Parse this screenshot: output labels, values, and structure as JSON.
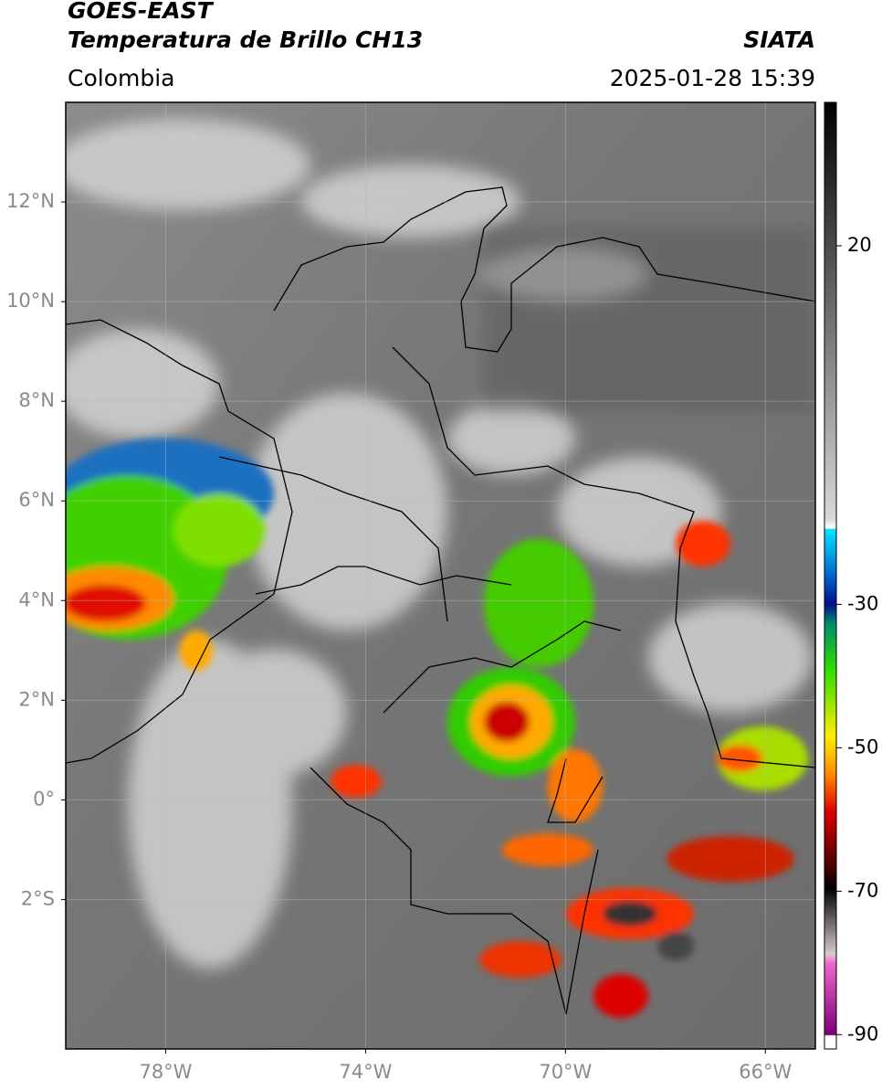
{
  "header": {
    "title": "GOES-EAST",
    "subtitle": "Temperatura de Brillo CH13",
    "source": "SIATA",
    "region": "Colombia",
    "datetime": "2025-01-28 15:39"
  },
  "map": {
    "xlim": [
      -80,
      -65
    ],
    "ylim": [
      -5,
      14
    ],
    "xticks": [
      {
        "value": -78,
        "label": "78°W"
      },
      {
        "value": -74,
        "label": "74°W"
      },
      {
        "value": -70,
        "label": "70°W"
      },
      {
        "value": -66,
        "label": "66°W"
      }
    ],
    "yticks": [
      {
        "value": 12,
        "label": "12°N"
      },
      {
        "value": 10,
        "label": "10°N"
      },
      {
        "value": 8,
        "label": "8°N"
      },
      {
        "value": 6,
        "label": "6°N"
      },
      {
        "value": 4,
        "label": "4°N"
      },
      {
        "value": 2,
        "label": "2°N"
      },
      {
        "value": 0,
        "label": "0°"
      },
      {
        "value": -2,
        "label": "2°S"
      }
    ],
    "grid": true
  },
  "colorbar": {
    "lim": [
      -92,
      40
    ],
    "ticks": [
      20,
      -30,
      -50,
      -70,
      -90
    ]
  }
}
